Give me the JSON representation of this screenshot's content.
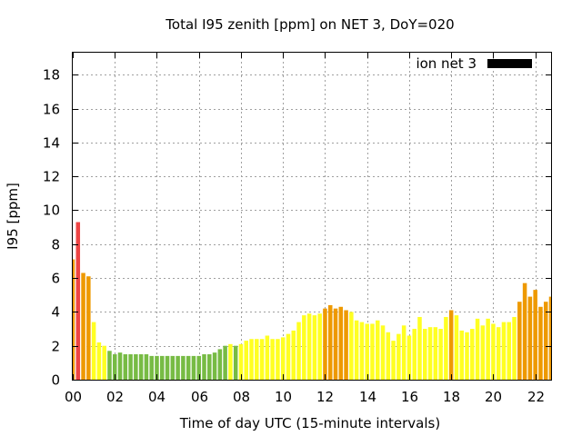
{
  "chart_data": {
    "type": "bar",
    "title": "Total I95 zenith [ppm] on NET 3, DoY=020",
    "xlabel": "Time of day UTC (15-minute intervals)",
    "ylabel": "I95 [ppm]",
    "legend": {
      "label": "ion net 3",
      "color": "#000000",
      "placement": "top-right"
    },
    "xlim": [
      0,
      22.75
    ],
    "ylim": [
      0,
      19.3
    ],
    "grid": true,
    "x_ticks": [
      {
        "value": 0,
        "label": "00"
      },
      {
        "value": 2,
        "label": "02"
      },
      {
        "value": 4,
        "label": "04"
      },
      {
        "value": 6,
        "label": "06"
      },
      {
        "value": 8,
        "label": "08"
      },
      {
        "value": 10,
        "label": "10"
      },
      {
        "value": 12,
        "label": "12"
      },
      {
        "value": 14,
        "label": "14"
      },
      {
        "value": 16,
        "label": "16"
      },
      {
        "value": 18,
        "label": "18"
      },
      {
        "value": 20,
        "label": "20"
      },
      {
        "value": 22,
        "label": "22"
      }
    ],
    "y_ticks": [
      {
        "value": 0,
        "label": "0"
      },
      {
        "value": 2,
        "label": "2"
      },
      {
        "value": 4,
        "label": "4"
      },
      {
        "value": 6,
        "label": "6"
      },
      {
        "value": 8,
        "label": "8"
      },
      {
        "value": 10,
        "label": "10"
      },
      {
        "value": 12,
        "label": "12"
      },
      {
        "value": 14,
        "label": "14"
      },
      {
        "value": 16,
        "label": "16"
      },
      {
        "value": 18,
        "label": "18"
      }
    ],
    "bar_interval_hours": 0.25,
    "colors": {
      "green": "#77bb44",
      "yellow": "#ffff22",
      "orange": "#ee9900",
      "red": "#ee4444"
    },
    "values": [
      7.1,
      9.3,
      6.3,
      6.1,
      3.4,
      2.2,
      2.0,
      1.7,
      1.5,
      1.6,
      1.5,
      1.5,
      1.5,
      1.5,
      1.5,
      1.4,
      1.4,
      1.4,
      1.4,
      1.4,
      1.4,
      1.4,
      1.4,
      1.4,
      1.4,
      1.5,
      1.5,
      1.6,
      1.8,
      2.0,
      2.1,
      2.0,
      2.1,
      2.3,
      2.4,
      2.4,
      2.4,
      2.6,
      2.4,
      2.4,
      2.5,
      2.7,
      2.9,
      3.4,
      3.8,
      3.9,
      3.8,
      3.9,
      4.2,
      4.4,
      4.2,
      4.3,
      4.1,
      4.0,
      3.5,
      3.4,
      3.3,
      3.3,
      3.5,
      3.2,
      2.8,
      2.3,
      2.7,
      3.2,
      2.6,
      3.0,
      3.7,
      3.0,
      3.1,
      3.1,
      3.0,
      3.7,
      4.1,
      3.8,
      2.9,
      2.8,
      3.0,
      3.6,
      3.2,
      3.6,
      3.3,
      3.1,
      3.4,
      3.4,
      3.7,
      4.6,
      5.7,
      4.9,
      5.3,
      4.3,
      4.6,
      4.9
    ],
    "bar_colors": [
      "orange",
      "red",
      "orange",
      "orange",
      "yellow",
      "yellow",
      "yellow",
      "green",
      "green",
      "green",
      "green",
      "green",
      "green",
      "green",
      "green",
      "green",
      "green",
      "green",
      "green",
      "green",
      "green",
      "green",
      "green",
      "green",
      "green",
      "green",
      "green",
      "green",
      "green",
      "green",
      "yellow",
      "green",
      "yellow",
      "yellow",
      "yellow",
      "yellow",
      "yellow",
      "yellow",
      "yellow",
      "yellow",
      "yellow",
      "yellow",
      "yellow",
      "yellow",
      "yellow",
      "yellow",
      "yellow",
      "yellow",
      "orange",
      "orange",
      "orange",
      "orange",
      "orange",
      "yellow",
      "yellow",
      "yellow",
      "yellow",
      "yellow",
      "yellow",
      "yellow",
      "yellow",
      "yellow",
      "yellow",
      "yellow",
      "yellow",
      "yellow",
      "yellow",
      "yellow",
      "yellow",
      "yellow",
      "yellow",
      "yellow",
      "orange",
      "yellow",
      "yellow",
      "yellow",
      "yellow",
      "yellow",
      "yellow",
      "yellow",
      "yellow",
      "yellow",
      "yellow",
      "yellow",
      "yellow",
      "orange",
      "orange",
      "orange",
      "orange",
      "orange",
      "orange",
      "orange"
    ]
  }
}
